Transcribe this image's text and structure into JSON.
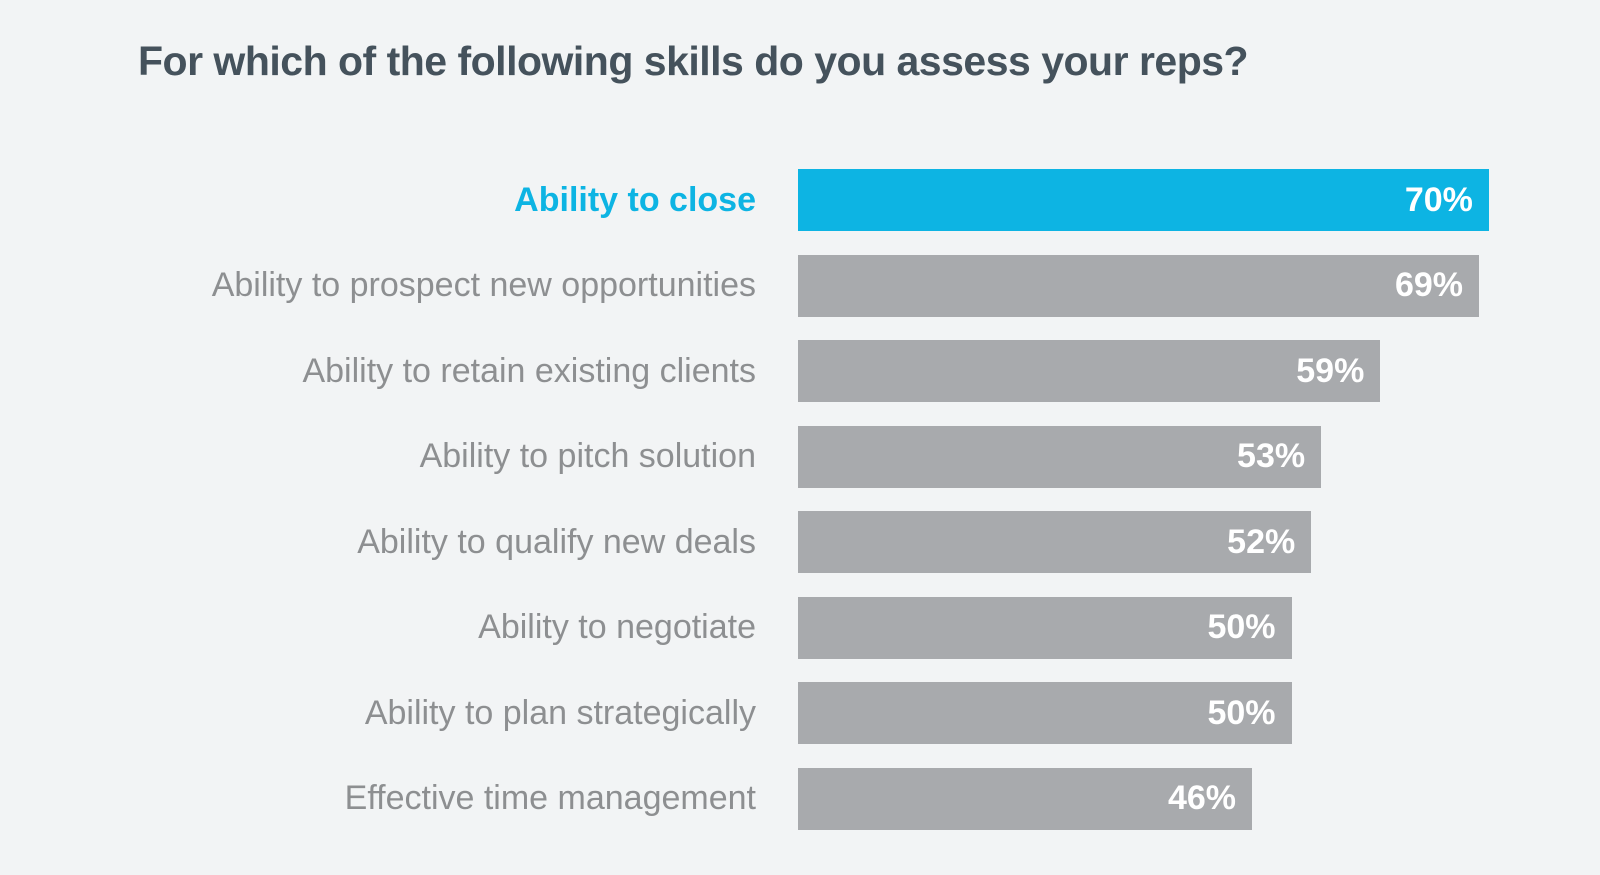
{
  "page_title": "For which of the following skills do you assess your reps?",
  "chart_data": {
    "type": "bar",
    "orientation": "horizontal",
    "title": "For which of the following skills do you assess your reps?",
    "categories": [
      "Ability to close",
      "Ability to prospect new opportunities",
      "Ability to retain existing clients",
      "Ability to pitch solution",
      "Ability to qualify new deals",
      "Ability to negotiate",
      "Ability to plan strategically",
      "Effective time management"
    ],
    "values": [
      70,
      69,
      59,
      53,
      52,
      50,
      50,
      46
    ],
    "value_suffix": "%",
    "highlight_index": 0,
    "xlim": [
      0,
      81
    ],
    "grid": false,
    "legend": "none",
    "colors": {
      "highlight_bar": "#0db4e3",
      "bar": "#a8aaad",
      "highlight_label": "#0db4e3",
      "label": "#8d8f91",
      "value_text": "#ffffff",
      "title": "#45525c",
      "background": "#f2f4f5"
    }
  }
}
